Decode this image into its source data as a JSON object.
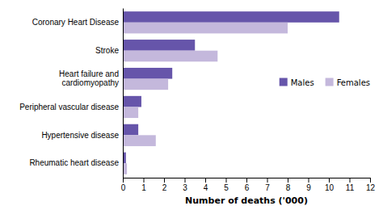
{
  "chart_data": {
    "type": "bar",
    "orientation": "horizontal",
    "categories": [
      "Rheumatic heart disease",
      "Hypertensive disease",
      "Peripheral vascular disease",
      "Heart failure and\ncardiomyopathy",
      "Stroke",
      "Coronary Heart Disease"
    ],
    "series": [
      {
        "name": "Males",
        "color": "#6655AA",
        "values": [
          0.15,
          0.75,
          0.9,
          2.4,
          3.5,
          10.5
        ]
      },
      {
        "name": "Females",
        "color": "#C4B8DC",
        "values": [
          0.2,
          1.6,
          0.75,
          2.2,
          4.6,
          8.0
        ]
      }
    ],
    "x_label": "Number of deaths ('000)",
    "xlim": [
      0,
      12
    ],
    "xticks": [
      0,
      1,
      2,
      3,
      4,
      5,
      6,
      7,
      8,
      9,
      10,
      11,
      12
    ],
    "legend": "right",
    "grid": false
  }
}
